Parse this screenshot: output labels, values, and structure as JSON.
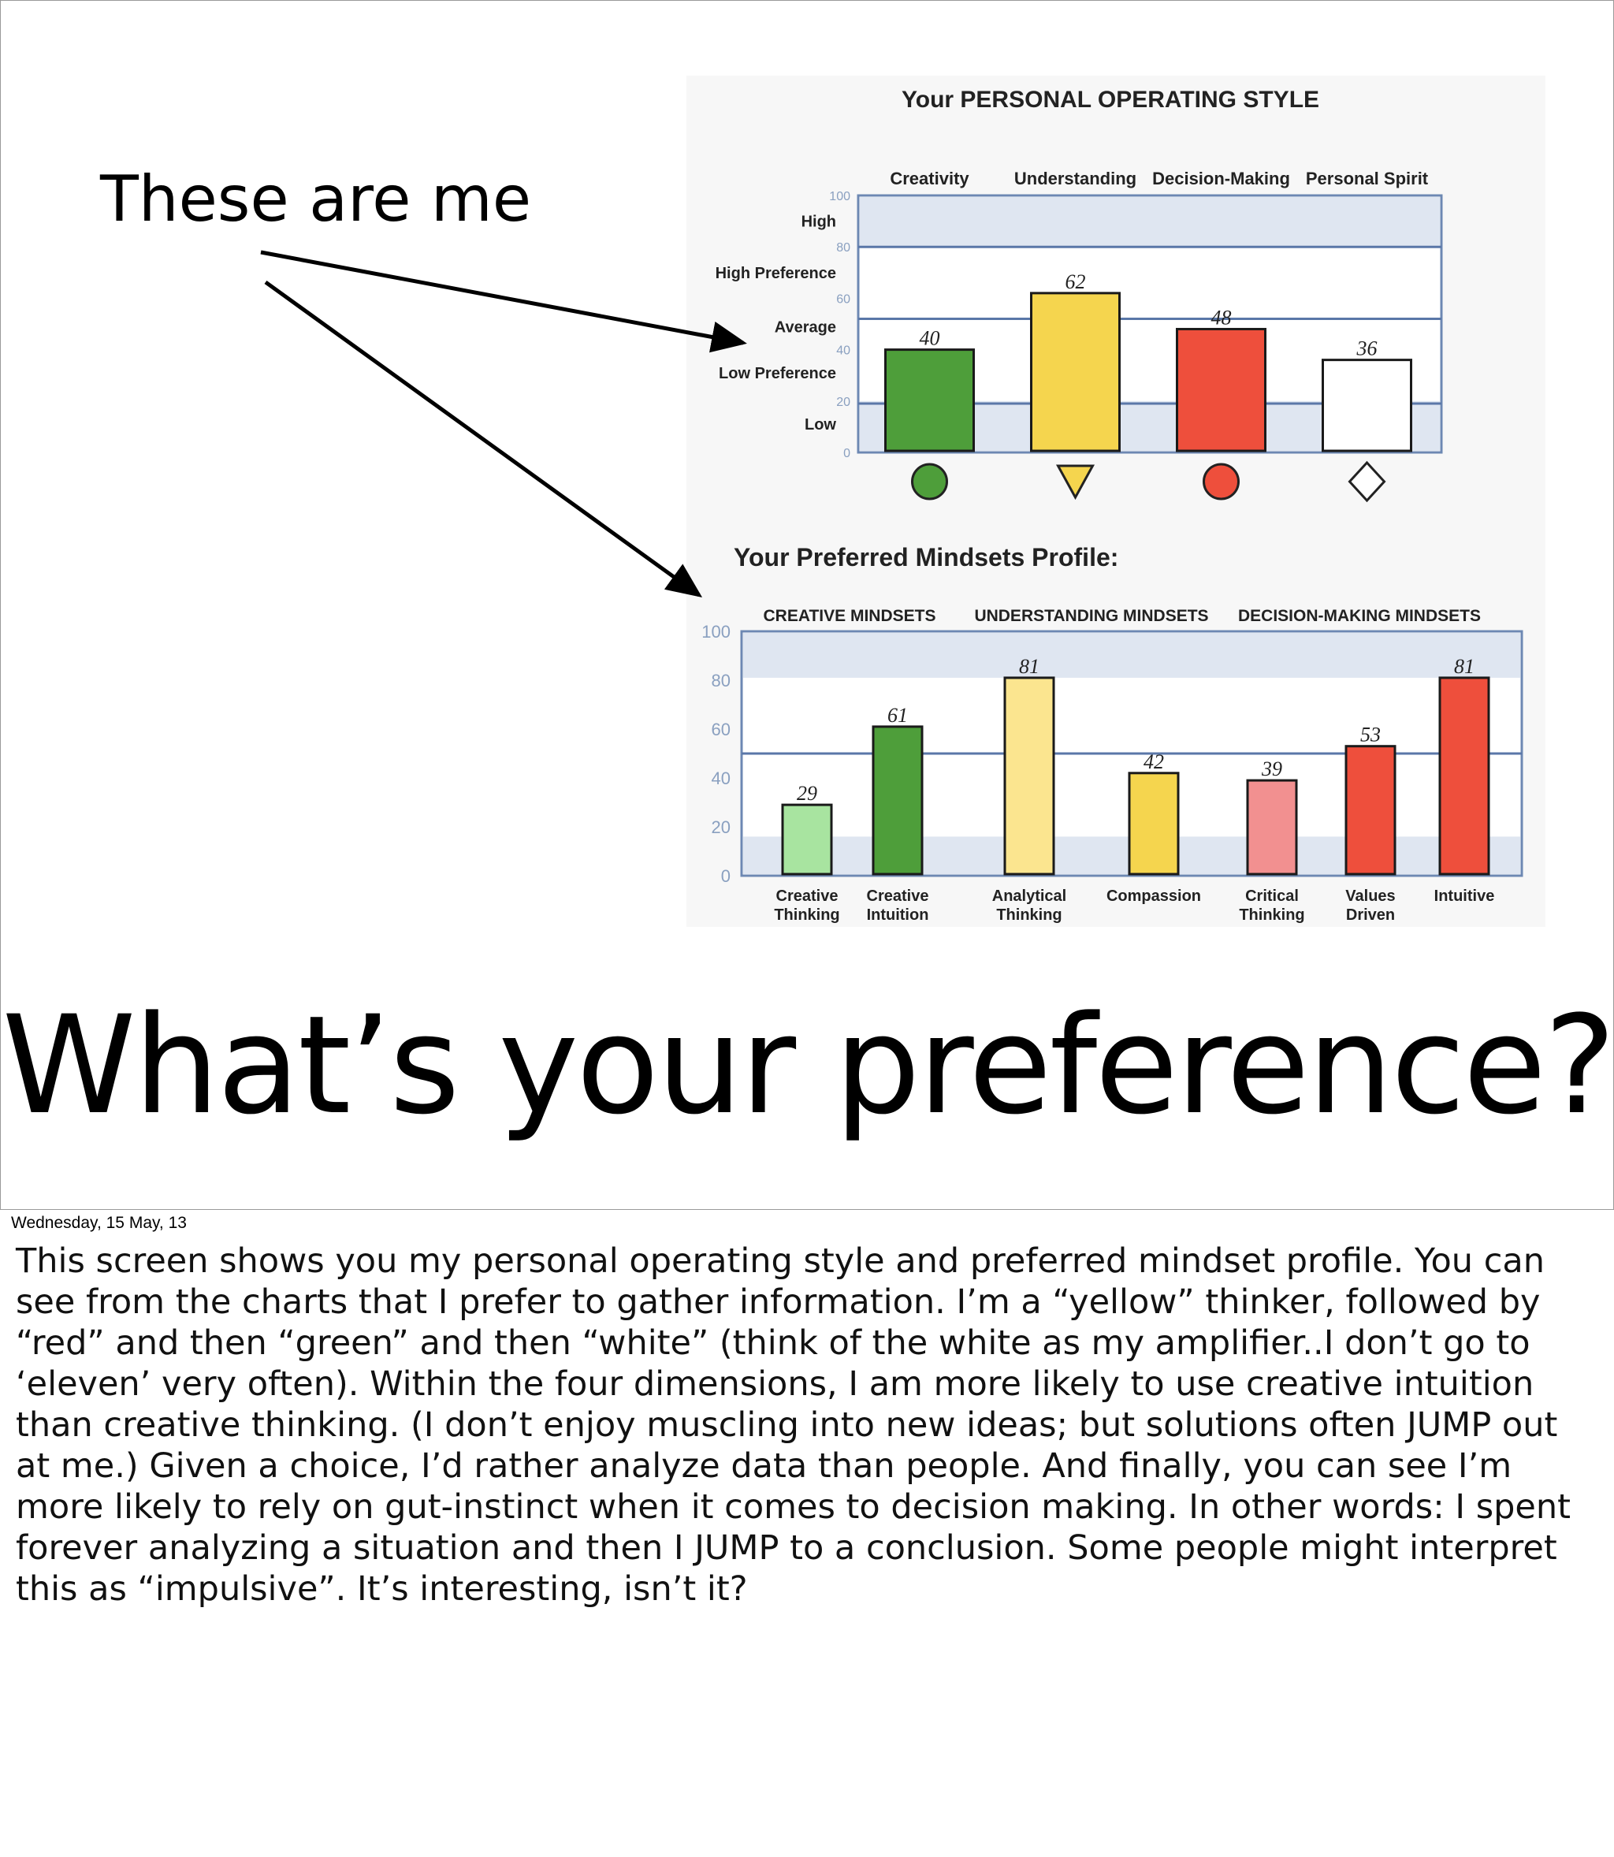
{
  "slide": {
    "caption": "These are me",
    "title": "What’s your preference?"
  },
  "notes": {
    "date": "Wednesday, 15 May, 13",
    "body": "This screen shows you my personal operating style and preferred mindset profile. You can see from the charts that I prefer to gather information. I’m a “yellow” thinker, followed by “red” and then “green” and then “white” (think of the white as my amplifier..I don’t go to ‘eleven’ very often). Within the four dimensions, I am more likely to use creative intuition than creative thinking. (I don’t enjoy muscling into new ideas; but solutions often JUMP out at me.) Given a choice, I’d rather analyze data than people. And finally, you can see I’m more likely to rely on gut-instinct when it comes to decision making. In other words: I spent forever analyzing a situation and then I JUMP to a conclusion. Some people might interpret this as “impulsive”. It’s interesting, isn’t it?"
  },
  "chart_data": [
    {
      "type": "bar",
      "title": "Your PERSONAL OPERATING STYLE",
      "categories": [
        "Creativity",
        "Understanding",
        "Decision-Making",
        "Personal Spirit"
      ],
      "values": [
        40,
        62,
        48,
        36
      ],
      "colors": [
        "#4e9e3a",
        "#f5d54e",
        "#ee4f3c",
        "#ffffff"
      ],
      "markers": [
        "circle",
        "triangle-down",
        "circle",
        "diamond"
      ],
      "ylim": [
        0,
        100
      ],
      "yticks": [
        0,
        20,
        40,
        60,
        80,
        100
      ],
      "band_labels": [
        "High",
        "High Preference",
        "Average",
        "Low Preference",
        "Low"
      ],
      "grid": false
    },
    {
      "type": "bar",
      "title": "Your Preferred Mindsets Profile:",
      "groups": [
        "CREATIVE MINDSETS",
        "UNDERSTANDING MINDSETS",
        "DECISION-MAKING MINDSETS"
      ],
      "categories": [
        "Creative Thinking",
        "Creative Intuition",
        "Analytical Thinking",
        "Compassion",
        "Critical Thinking",
        "Values Driven",
        "Intuitive"
      ],
      "values": [
        29,
        61,
        81,
        42,
        39,
        53,
        81
      ],
      "colors": [
        "#a8e4a0",
        "#4e9e3a",
        "#fbe58f",
        "#f5d54e",
        "#f29090",
        "#ee4f3c",
        "#ee4f3c"
      ],
      "ylim": [
        0,
        100
      ],
      "yticks": [
        0,
        20,
        40,
        60,
        80,
        100
      ],
      "grid": false
    }
  ]
}
